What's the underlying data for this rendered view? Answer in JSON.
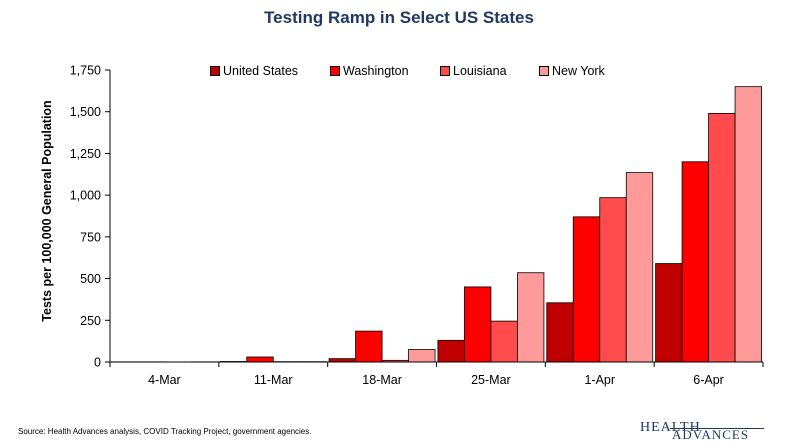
{
  "header": {
    "title": "Testing Ramp in Select US States"
  },
  "footer": {
    "source": "Source:  Health Advances analysis, COVID Tracking Project, government agencies.",
    "logo_text": "HEALTH ADVANCES"
  },
  "colors": {
    "title": "#1f3864",
    "logo": "#1f3864",
    "series": [
      "#c00000",
      "#ff0000",
      "#ff4b4b",
      "#ff9a9a"
    ]
  },
  "chart_data": {
    "type": "bar",
    "title": "Testing Ramp in Select US States",
    "xlabel": "",
    "ylabel": "Tests per 100,000 General Population",
    "ylim": [
      0,
      1750
    ],
    "yticks": [
      0,
      250,
      500,
      750,
      1000,
      1250,
      1500,
      1750
    ],
    "ytick_labels": [
      "0",
      "250",
      "500",
      "750",
      "1,000",
      "1,250",
      "1,500",
      "1,750"
    ],
    "grid": false,
    "legend_position": "top",
    "categories": [
      "4-Mar",
      "11-Mar",
      "18-Mar",
      "25-Mar",
      "1-Apr",
      "6-Apr"
    ],
    "series": [
      {
        "name": "United States",
        "values": [
          1,
          3,
          20,
          130,
          355,
          590
        ]
      },
      {
        "name": "Washington",
        "values": [
          1,
          30,
          185,
          450,
          870,
          1200
        ]
      },
      {
        "name": "Louisiana",
        "values": [
          0,
          2,
          10,
          245,
          985,
          1490
        ]
      },
      {
        "name": "New York",
        "values": [
          1,
          2,
          75,
          535,
          1135,
          1650
        ]
      }
    ]
  }
}
